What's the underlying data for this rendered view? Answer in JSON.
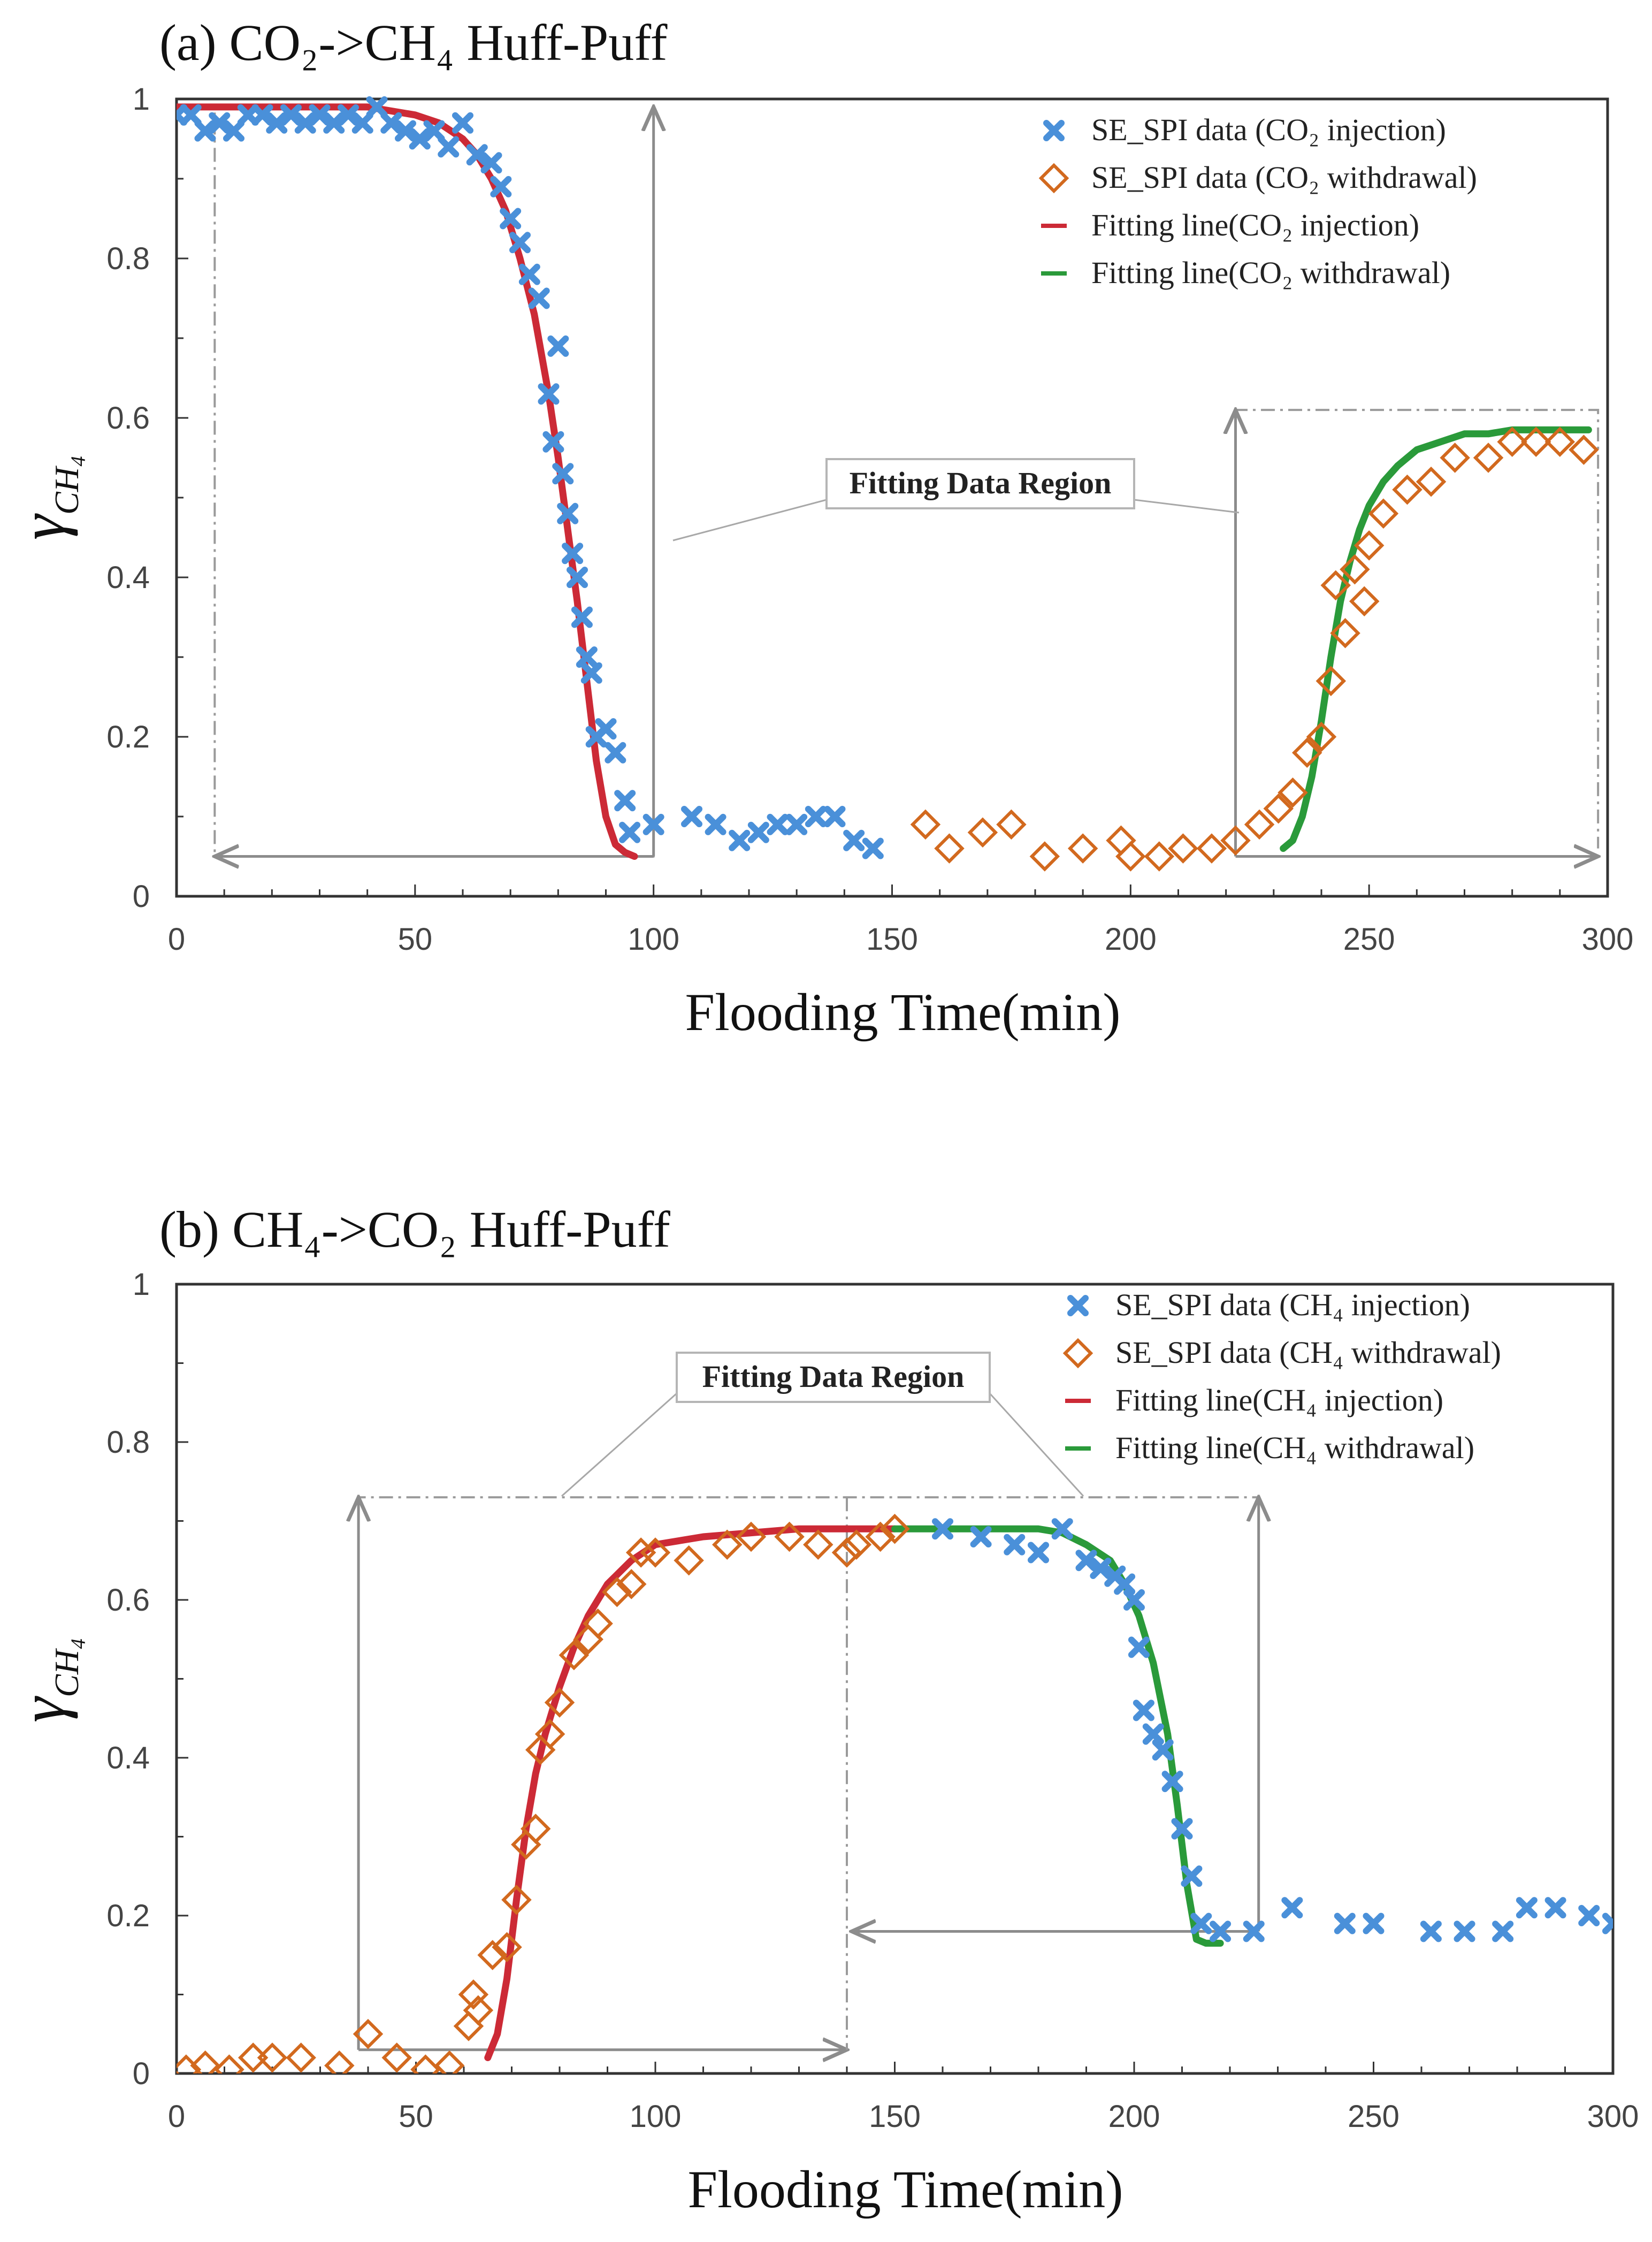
{
  "chart_data": [
    {
      "type": "scatter",
      "title": "(a) CO₂->CH₄ Huff-Puff",
      "xlabel": "Flooding Time(min)",
      "ylabel": "γ",
      "ylabel_sub": "CH₄",
      "xlim": [
        0,
        300
      ],
      "ylim": [
        0,
        1
      ],
      "xticks": [
        0,
        50,
        100,
        150,
        200,
        250,
        300
      ],
      "yticks": [
        0,
        0.2,
        0.4,
        0.6,
        0.8,
        1
      ],
      "ytick_labels": [
        "0",
        "0.2",
        "0.4",
        "0.6",
        "0.8",
        "1"
      ],
      "annotation": "Fitting Data Region",
      "series": [
        {
          "name": "SE_SPI data (CO₂ injection)",
          "kind": "scatter",
          "marker": "x",
          "color": "#4a90d9",
          "x": [
            0,
            3,
            6,
            9,
            12,
            15,
            18,
            21,
            24,
            27,
            30,
            33,
            36,
            39,
            42,
            45,
            48,
            51,
            54,
            57,
            60,
            63,
            66,
            68,
            70,
            72,
            74,
            76,
            78,
            79,
            80,
            81,
            82,
            83,
            84,
            85,
            86,
            87,
            88,
            90,
            92,
            94,
            95,
            100,
            108,
            113,
            118,
            122,
            126,
            130,
            134,
            138,
            142,
            146
          ],
          "y": [
            0.98,
            0.98,
            0.96,
            0.97,
            0.96,
            0.98,
            0.98,
            0.97,
            0.98,
            0.97,
            0.98,
            0.97,
            0.98,
            0.97,
            0.99,
            0.97,
            0.96,
            0.95,
            0.96,
            0.94,
            0.97,
            0.93,
            0.92,
            0.89,
            0.85,
            0.82,
            0.78,
            0.75,
            0.63,
            0.57,
            0.69,
            0.53,
            0.48,
            0.43,
            0.4,
            0.35,
            0.3,
            0.28,
            0.2,
            0.21,
            0.18,
            0.12,
            0.08,
            0.09,
            0.1,
            0.09,
            0.07,
            0.08,
            0.09,
            0.09,
            0.1,
            0.1,
            0.07,
            0.06
          ]
        },
        {
          "name": "SE_SPI data (CO₂ withdrawal)",
          "kind": "scatter",
          "marker": "diamond",
          "color": "#d2691e",
          "x": [
            157,
            162,
            169,
            175,
            182,
            190,
            198,
            200,
            206,
            211,
            217,
            222,
            227,
            231,
            234,
            237,
            240,
            242,
            243,
            245,
            247,
            249,
            250,
            253,
            258,
            263,
            268,
            275,
            280,
            285,
            290,
            295
          ],
          "y": [
            0.09,
            0.06,
            0.08,
            0.09,
            0.05,
            0.06,
            0.07,
            0.05,
            0.05,
            0.06,
            0.06,
            0.07,
            0.09,
            0.11,
            0.13,
            0.18,
            0.2,
            0.27,
            0.39,
            0.33,
            0.41,
            0.37,
            0.44,
            0.48,
            0.51,
            0.52,
            0.55,
            0.55,
            0.57,
            0.57,
            0.57,
            0.56
          ]
        },
        {
          "name": "Fitting line(CO₂ injection)",
          "kind": "line",
          "color": "#cc2a36",
          "x": [
            0,
            20,
            40,
            50,
            55,
            60,
            63,
            66,
            69,
            72,
            75,
            78,
            80,
            82,
            84,
            86,
            88,
            90,
            92,
            94,
            96
          ],
          "y": [
            0.99,
            0.99,
            0.99,
            0.98,
            0.97,
            0.95,
            0.93,
            0.9,
            0.86,
            0.8,
            0.73,
            0.63,
            0.55,
            0.46,
            0.37,
            0.27,
            0.17,
            0.1,
            0.065,
            0.055,
            0.05
          ]
        },
        {
          "name": "Fitting line(CO₂ withdrawal)",
          "kind": "line",
          "color": "#2a9a3a",
          "x": [
            232,
            234,
            236,
            238,
            240,
            242,
            244,
            246,
            248,
            250,
            253,
            256,
            260,
            265,
            270,
            275,
            280,
            290,
            296
          ],
          "y": [
            0.06,
            0.07,
            0.1,
            0.15,
            0.22,
            0.3,
            0.37,
            0.42,
            0.46,
            0.49,
            0.52,
            0.54,
            0.56,
            0.57,
            0.58,
            0.58,
            0.585,
            0.585,
            0.585
          ]
        }
      ],
      "legend": [
        {
          "label": "SE_SPI data (CO₂ injection)",
          "marker": "x",
          "color": "#4a90d9"
        },
        {
          "label": "SE_SPI data (CO₂ withdrawal)",
          "marker": "diamond",
          "color": "#d2691e"
        },
        {
          "label": "Fitting line(CO₂ injection)",
          "marker": "line",
          "color": "#cc2a36"
        },
        {
          "label": "Fitting line(CO₂ withdrawal)",
          "marker": "line",
          "color": "#2a9a3a"
        }
      ]
    },
    {
      "type": "scatter",
      "title": "(b) CH₄->CO₂ Huff-Puff",
      "xlabel": "Flooding Time(min)",
      "ylabel": "γ",
      "ylabel_sub": "CH₄",
      "xlim": [
        0,
        300
      ],
      "ylim": [
        0,
        1
      ],
      "xticks": [
        0,
        50,
        100,
        150,
        200,
        250,
        300
      ],
      "yticks": [
        0,
        0.2,
        0.4,
        0.6,
        0.8,
        1
      ],
      "ytick_labels": [
        "0",
        "0.2",
        "0.4",
        "0.6",
        "0.8",
        "1"
      ],
      "annotation": "Fitting Data Region",
      "series": [
        {
          "name": "SE_SPI data (CH₄ injection)",
          "kind": "scatter",
          "marker": "x",
          "color": "#4a90d9",
          "x": [
            160,
            168,
            175,
            180,
            185,
            190,
            193,
            196,
            198,
            200,
            201,
            202,
            204,
            206,
            208,
            210,
            212,
            214,
            218,
            225,
            233,
            244,
            250,
            262,
            269,
            277,
            282,
            288,
            295,
            300
          ],
          "y": [
            0.69,
            0.68,
            0.67,
            0.66,
            0.69,
            0.65,
            0.64,
            0.63,
            0.62,
            0.6,
            0.54,
            0.46,
            0.43,
            0.41,
            0.37,
            0.31,
            0.25,
            0.19,
            0.18,
            0.18,
            0.21,
            0.19,
            0.19,
            0.18,
            0.18,
            0.18,
            0.21,
            0.21,
            0.2,
            0.19
          ]
        },
        {
          "name": "SE_SPI data (CH₄ withdrawal)",
          "kind": "scatter",
          "marker": "diamond",
          "color": "#d2691e",
          "x": [
            2,
            6,
            11,
            16,
            20,
            26,
            34,
            40,
            46,
            52,
            57,
            61,
            62,
            63,
            66,
            69,
            71,
            73,
            75,
            76,
            78,
            80,
            83,
            86,
            88,
            92,
            95,
            97,
            100,
            107,
            115,
            120,
            128,
            134,
            140,
            142,
            147,
            150
          ],
          "y": [
            0.005,
            0.01,
            0.005,
            0.02,
            0.02,
            0.02,
            0.01,
            0.05,
            0.02,
            0.005,
            0.01,
            0.06,
            0.1,
            0.08,
            0.15,
            0.16,
            0.22,
            0.29,
            0.31,
            0.41,
            0.43,
            0.47,
            0.53,
            0.55,
            0.57,
            0.61,
            0.62,
            0.66,
            0.66,
            0.65,
            0.67,
            0.68,
            0.68,
            0.67,
            0.66,
            0.67,
            0.68,
            0.69
          ]
        },
        {
          "name": "Fitting line(CH₄ injection)",
          "kind": "line",
          "color": "#cc2a36",
          "x": [
            65,
            67,
            69,
            71,
            73,
            75,
            77,
            80,
            83,
            86,
            90,
            95,
            100,
            110,
            120,
            130,
            140,
            150
          ],
          "y": [
            0.02,
            0.05,
            0.12,
            0.22,
            0.31,
            0.38,
            0.43,
            0.49,
            0.54,
            0.58,
            0.62,
            0.65,
            0.67,
            0.68,
            0.685,
            0.69,
            0.69,
            0.69
          ]
        },
        {
          "name": "Fitting line(CH₄ withdrawal)",
          "kind": "line",
          "color": "#2a9a3a",
          "x": [
            150,
            160,
            170,
            180,
            185,
            190,
            195,
            198,
            201,
            204,
            207,
            209,
            211,
            213,
            215,
            218
          ],
          "y": [
            0.69,
            0.69,
            0.69,
            0.69,
            0.685,
            0.67,
            0.65,
            0.62,
            0.58,
            0.52,
            0.43,
            0.34,
            0.24,
            0.17,
            0.165,
            0.165
          ]
        }
      ],
      "legend": [
        {
          "label": "SE_SPI data (CH₄ injection)",
          "marker": "x",
          "color": "#4a90d9"
        },
        {
          "label": "SE_SPI data (CH₄  withdrawal)",
          "marker": "diamond",
          "color": "#d2691e"
        },
        {
          "label": "Fitting line(CH₄  injection)",
          "marker": "line",
          "color": "#cc2a36"
        },
        {
          "label": "Fitting line(CH₄  withdrawal)",
          "marker": "line",
          "color": "#2a9a3a"
        }
      ]
    }
  ]
}
